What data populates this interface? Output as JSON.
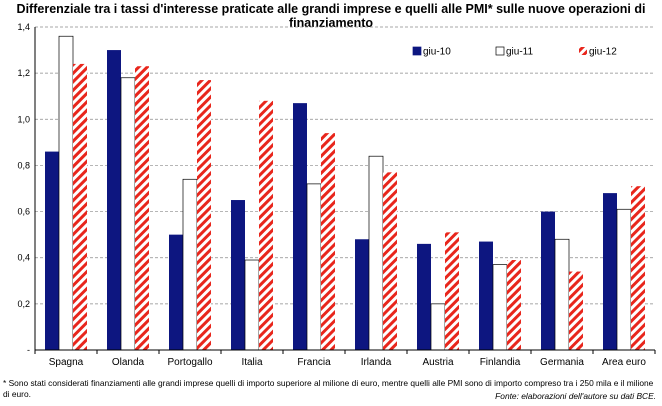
{
  "chart_data": {
    "type": "bar",
    "title": "Differenziale tra i tassi d'interesse praticate alle grandi imprese e quelli alle PMI* sulle nuove operazioni di finanziamento",
    "categories": [
      "Spagna",
      "Olanda",
      "Portogallo",
      "Italia",
      "Francia",
      "Irlanda",
      "Austria",
      "Finlandia",
      "Germania",
      "Area euro"
    ],
    "series": [
      {
        "name": "giu-10",
        "values": [
          0.86,
          1.3,
          0.5,
          0.65,
          1.07,
          0.48,
          0.46,
          0.47,
          0.6,
          0.68
        ],
        "color": "#0d1680",
        "pattern": "solid"
      },
      {
        "name": "giu-11",
        "values": [
          1.36,
          1.18,
          0.74,
          0.39,
          0.72,
          0.84,
          0.2,
          0.37,
          0.48,
          0.61
        ],
        "color": "#ffffff",
        "pattern": "outline"
      },
      {
        "name": "giu-12",
        "values": [
          1.24,
          1.23,
          1.17,
          1.08,
          0.94,
          0.77,
          0.51,
          0.39,
          0.34,
          0.71
        ],
        "color": "#e8261c",
        "pattern": "diagonal-stripes"
      }
    ],
    "ylim": [
      0,
      1.4
    ],
    "yticks": [
      "-",
      "0,2",
      "0,4",
      "0,6",
      "0,8",
      "1,0",
      "1,2",
      "1,4"
    ],
    "legend_position": "top-right",
    "grid": true
  },
  "footnote": "* Sono stati considerati finanziamenti alle grandi imprese quelli di importo superiore al milione di euro, mentre quelli alle PMI sono di importo compreso tra i 250 mila e il milione di euro.",
  "source": "Fonte: elaborazioni dell'autore su dati BCE."
}
